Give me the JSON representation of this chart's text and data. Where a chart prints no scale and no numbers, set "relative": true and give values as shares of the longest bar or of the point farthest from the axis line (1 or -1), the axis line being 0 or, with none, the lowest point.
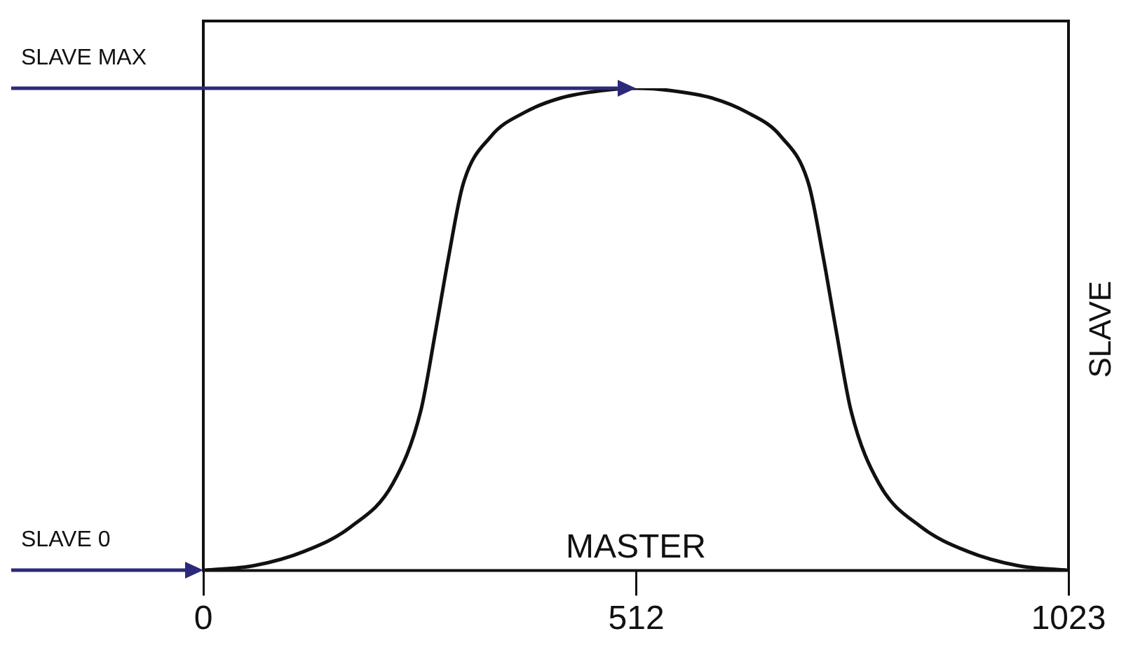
{
  "chart_data": {
    "type": "line",
    "relative": true,
    "xlabel": "MASTER",
    "ylabel": "SLAVE",
    "xlim": [
      0,
      1023
    ],
    "xticks": [
      0,
      512,
      1023
    ],
    "grid": false,
    "legend": false,
    "marker": "none",
    "line_style": "solid",
    "tick_labels": "x",
    "annotations": [
      "SLAVE MAX",
      "SLAVE 0"
    ],
    "series": [
      {
        "color": "#111111",
        "x": [
          0,
          60,
          120,
          174,
          224,
          257,
          275,
          290,
          307,
          340,
          380,
          423,
          470,
          512,
          554,
          601,
          643,
          683,
          716,
          733,
          748,
          766,
          799,
          849,
          903,
          963,
          1023
        ],
        "values": [
          0,
          0.01,
          0.04,
          0.09,
          0.18,
          0.33,
          0.5,
          0.65,
          0.8,
          0.9,
          0.95,
          0.98,
          0.995,
          1,
          0.995,
          0.98,
          0.95,
          0.9,
          0.8,
          0.65,
          0.5,
          0.33,
          0.18,
          0.09,
          0.04,
          0.01,
          0
        ]
      }
    ]
  }
}
